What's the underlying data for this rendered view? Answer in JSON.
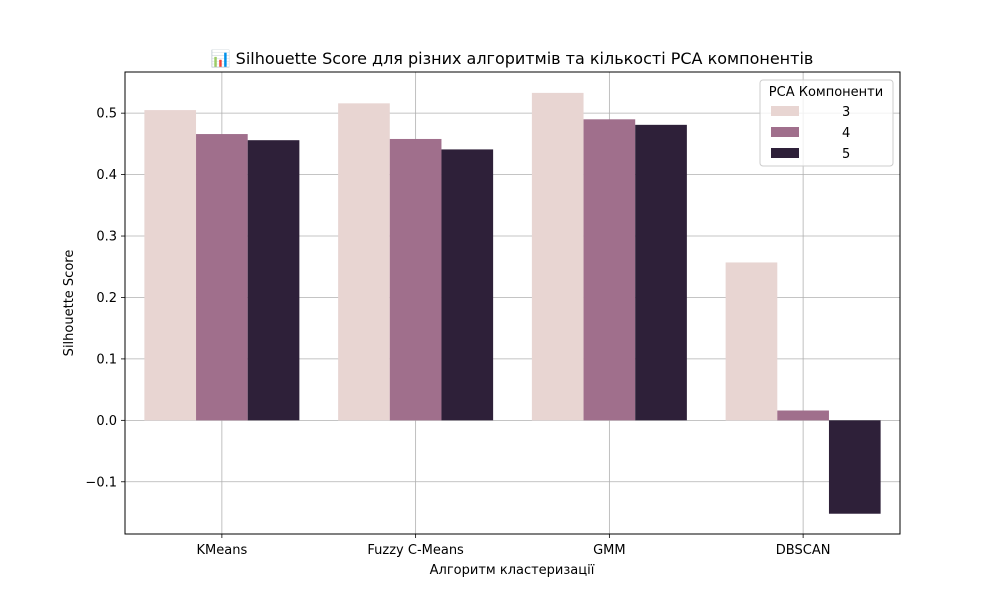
{
  "chart_data": {
    "type": "bar",
    "title": "📊 Silhouette Score для різних алгоритмів та кількості PCA компонентів",
    "xlabel": "Алгоритм кластеризації",
    "ylabel": "Silhouette Score",
    "categories": [
      "KMeans",
      "Fuzzy C-Means",
      "GMM",
      "DBSCAN"
    ],
    "series": [
      {
        "name": "3",
        "color": "#e8d5d2",
        "values": [
          0.505,
          0.516,
          0.533,
          0.257
        ]
      },
      {
        "name": "4",
        "color": "#a06f8c",
        "values": [
          0.466,
          0.458,
          0.49,
          0.016
        ]
      },
      {
        "name": "5",
        "color": "#2e2039",
        "values": [
          0.456,
          0.441,
          0.481,
          -0.152
        ]
      }
    ],
    "ylim": [
      -0.185,
      0.567
    ],
    "yticks": [
      -0.1,
      0.0,
      0.1,
      0.2,
      0.3,
      0.4,
      0.5
    ],
    "ytick_labels": [
      "−0.1",
      "0.0",
      "0.1",
      "0.2",
      "0.3",
      "0.4",
      "0.5"
    ],
    "grid": true,
    "legend": {
      "title": "PCA Компоненти",
      "position": "upper right"
    }
  }
}
